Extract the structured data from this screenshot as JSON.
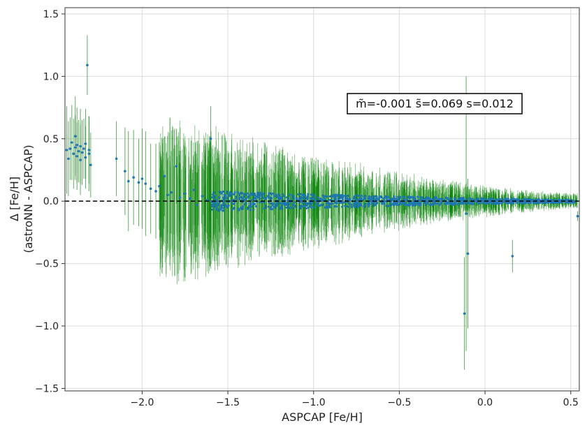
{
  "chart_data": {
    "type": "scatter",
    "xlabel": "ASPCAP [Fe/H]",
    "ylabel_line1": "Δ [Fe/H]",
    "ylabel_line2": "(astroNN - ASPCAP)",
    "xlim": [
      -2.45,
      0.55
    ],
    "ylim": [
      -1.52,
      1.55
    ],
    "x_ticks": [
      -2.0,
      -1.5,
      -1.0,
      -0.5,
      0.0,
      0.5
    ],
    "x_tick_labels": [
      "−2.0",
      "−1.5",
      "−1.0",
      "−0.5",
      "0.0",
      "0.5"
    ],
    "y_ticks": [
      -1.5,
      -1.0,
      -0.5,
      0.0,
      0.5,
      1.0,
      1.5
    ],
    "y_tick_labels": [
      "−1.5",
      "−1.0",
      "−0.5",
      "0.0",
      "0.5",
      "1.0",
      "1.5"
    ],
    "grid": true,
    "reference_line": {
      "y": 0.0,
      "style": "dashed",
      "color": "#000000"
    },
    "annotation": "m͂=-0.001 s͂=0.069 s=0.012",
    "colors": {
      "points": "#1f77b4",
      "errorbars": "#008000"
    },
    "series": [
      {
        "x": [
          -2.44,
          -2.43,
          -2.42,
          -2.41,
          -2.4,
          -2.39,
          -2.39,
          -2.38,
          -2.38,
          -2.37,
          -2.36,
          -2.36,
          -2.35,
          -2.34,
          -2.33,
          -2.33,
          -2.32,
          -2.31,
          -2.31,
          -2.3,
          -2.15,
          -2.1,
          -2.08,
          -2.05,
          -2.02,
          -2.0,
          -1.98,
          -1.95,
          -1.92,
          -1.9,
          -1.87,
          -1.85,
          -1.83,
          -1.8,
          -1.78,
          -1.75,
          -1.72,
          -1.7,
          -1.68,
          -1.65,
          -1.62,
          -1.6,
          -1.58,
          -1.55,
          -1.52,
          -1.5,
          -1.48,
          -1.45,
          -1.42,
          -1.4,
          -1.38,
          -1.35,
          -1.32,
          -1.3,
          -1.28,
          -1.25,
          -1.22,
          -1.2,
          -1.18,
          -1.15,
          -1.12,
          -1.1,
          -1.08,
          -1.05,
          -1.02,
          -1.0,
          -0.98,
          -0.95,
          -0.9,
          -0.85,
          -0.8,
          -0.75,
          -0.7,
          -0.65,
          -0.6,
          -0.55,
          -0.5,
          -0.45,
          -0.4,
          -0.35,
          -0.3,
          -0.25,
          -0.2,
          -0.15,
          -0.12,
          -0.11,
          -0.1,
          -0.05,
          0.0,
          0.05,
          0.1,
          0.15,
          0.16,
          0.2,
          0.25,
          0.3,
          0.35,
          0.4,
          0.45,
          0.5,
          0.54
        ],
        "y": [
          0.41,
          0.34,
          0.42,
          0.47,
          0.38,
          0.52,
          0.43,
          0.45,
          0.36,
          0.4,
          0.33,
          0.44,
          0.39,
          0.42,
          0.46,
          0.35,
          1.09,
          0.41,
          0.38,
          0.29,
          0.34,
          0.24,
          0.16,
          0.19,
          0.15,
          0.18,
          0.14,
          0.1,
          0.08,
          0.12,
          0.2,
          0.05,
          0.07,
          0.28,
          0.03,
          0.06,
          0.02,
          0.09,
          -0.03,
          0.04,
          0.01,
          0.5,
          -0.02,
          0.03,
          0.05,
          -0.04,
          0.06,
          0.02,
          -0.05,
          0.01,
          0.03,
          -0.02,
          0.04,
          -0.01,
          0.02,
          -0.06,
          0.0,
          0.03,
          -0.02,
          0.01,
          -0.03,
          0.02,
          0.01,
          -0.04,
          0.0,
          0.02,
          -0.01,
          0.01,
          -0.02,
          0.0,
          0.01,
          -0.01,
          0.02,
          0.0,
          -0.02,
          -0.01,
          0.0,
          -0.03,
          0.0,
          0.01,
          -0.01,
          0.0,
          -0.02,
          0.01,
          -0.9,
          -0.1,
          -0.42,
          0.0,
          -0.01,
          0.0,
          -0.01,
          0.0,
          -0.44,
          0.0,
          -0.01,
          0.0,
          0.0,
          -0.01,
          0.0,
          -0.01,
          -0.12
        ],
        "yerr": [
          0.35,
          0.3,
          0.25,
          0.3,
          0.28,
          0.32,
          0.26,
          0.3,
          0.27,
          0.25,
          0.28,
          0.3,
          0.26,
          0.24,
          0.28,
          0.25,
          0.24,
          0.27,
          0.3,
          0.26,
          0.3,
          0.35,
          0.4,
          0.38,
          0.35,
          0.4,
          0.42,
          0.36,
          0.38,
          0.35,
          0.32,
          0.3,
          0.33,
          0.3,
          0.28,
          0.3,
          0.27,
          0.28,
          0.26,
          0.25,
          0.27,
          0.26,
          0.25,
          0.28,
          0.24,
          0.25,
          0.22,
          0.24,
          0.21,
          0.22,
          0.2,
          0.22,
          0.19,
          0.2,
          0.18,
          0.19,
          0.17,
          0.18,
          0.16,
          0.17,
          0.15,
          0.16,
          0.14,
          0.15,
          0.14,
          0.13,
          0.13,
          0.12,
          0.12,
          0.11,
          0.11,
          0.1,
          0.1,
          0.1,
          0.09,
          0.09,
          0.09,
          0.08,
          0.08,
          0.08,
          0.07,
          0.07,
          0.07,
          0.07,
          0.45,
          1.1,
          0.6,
          0.06,
          0.06,
          0.06,
          0.05,
          0.05,
          0.13,
          0.05,
          0.05,
          0.05,
          0.04,
          0.04,
          0.04,
          0.04,
          0.04
        ]
      }
    ]
  }
}
